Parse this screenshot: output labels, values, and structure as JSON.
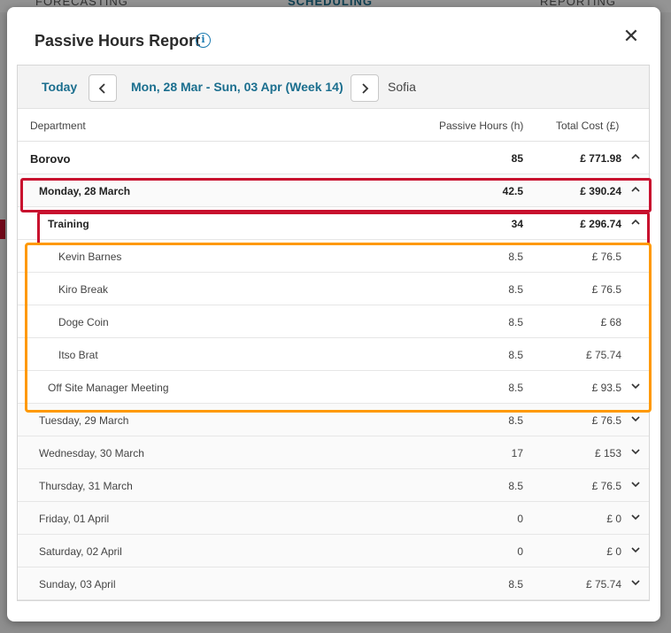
{
  "background": {
    "nav": [
      "FORECASTING",
      "SCHEDULING",
      "REPORTING"
    ]
  },
  "modal": {
    "title": "Passive Hours Report",
    "info_icon": "info-icon",
    "close_icon": "close-icon",
    "close_glyph": "✕"
  },
  "toolbar": {
    "today_label": "Today",
    "prev_glyph": "‹",
    "next_glyph": "›",
    "week_label": "Mon, 28 Mar - Sun, 03 Apr (Week 14)",
    "location": "Sofia"
  },
  "columns": {
    "department": "Department",
    "hours": "Passive Hours (h)",
    "cost": "Total Cost (£)"
  },
  "rows": [
    {
      "label": "Borovo",
      "hours": "85",
      "cost": "£ 771.98",
      "chevron": "up"
    },
    {
      "label": "Monday, 28 March",
      "hours": "42.5",
      "cost": "£ 390.24",
      "chevron": "up"
    },
    {
      "label": "Training",
      "hours": "34",
      "cost": "£ 296.74",
      "chevron": "up"
    },
    {
      "label": "Kevin Barnes",
      "hours": "8.5",
      "cost": "£ 76.5",
      "chevron": ""
    },
    {
      "label": "Kiro Break",
      "hours": "8.5",
      "cost": "£ 76.5",
      "chevron": ""
    },
    {
      "label": "Doge Coin",
      "hours": "8.5",
      "cost": "£ 68",
      "chevron": ""
    },
    {
      "label": "Itso Brat",
      "hours": "8.5",
      "cost": "£ 75.74",
      "chevron": ""
    },
    {
      "label": "Off Site Manager Meeting",
      "hours": "8.5",
      "cost": "£ 93.5",
      "chevron": "down"
    },
    {
      "label": "Tuesday, 29 March",
      "hours": "8.5",
      "cost": "£ 76.5",
      "chevron": "down"
    },
    {
      "label": "Wednesday, 30 March",
      "hours": "17",
      "cost": "£ 153",
      "chevron": "down"
    },
    {
      "label": "Thursday, 31 March",
      "hours": "8.5",
      "cost": "£ 76.5",
      "chevron": "down"
    },
    {
      "label": "Friday, 01 April",
      "hours": "0",
      "cost": "£ 0",
      "chevron": "down"
    },
    {
      "label": "Saturday, 02 April",
      "hours": "0",
      "cost": "£ 0",
      "chevron": "down"
    },
    {
      "label": "Sunday, 03 April",
      "hours": "8.5",
      "cost": "£ 75.74",
      "chevron": "down"
    }
  ],
  "colors": {
    "accent": "#1a6e8e",
    "left_bar": "#1795c7",
    "highlight_red": "#c8102e",
    "highlight_orange": "#ff9900"
  }
}
